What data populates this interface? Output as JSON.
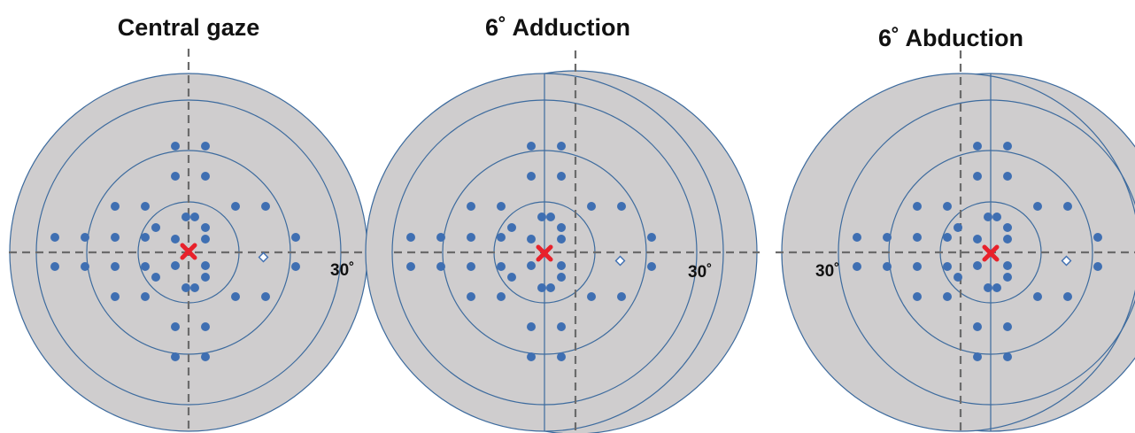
{
  "colors": {
    "background": "#ffffff",
    "field_fill": "#cfcdce",
    "ring_stroke": "#3d6b9e",
    "point": "#3f6fb2",
    "dashed_axis": "#6b6b6b",
    "fixation": "#e8212b",
    "blind_spot": "#3f6fb2"
  },
  "panels": [
    {
      "title": "Central gaze",
      "label_30": "30˚"
    },
    {
      "title": "6˚  Adduction",
      "label_30": "30˚"
    },
    {
      "title": "6˚  Abduction",
      "label_30": "30˚"
    }
  ],
  "icons": {
    "fixation": "red-x-fixation-icon",
    "blind_spot": "diamond-blind-spot-icon"
  }
}
